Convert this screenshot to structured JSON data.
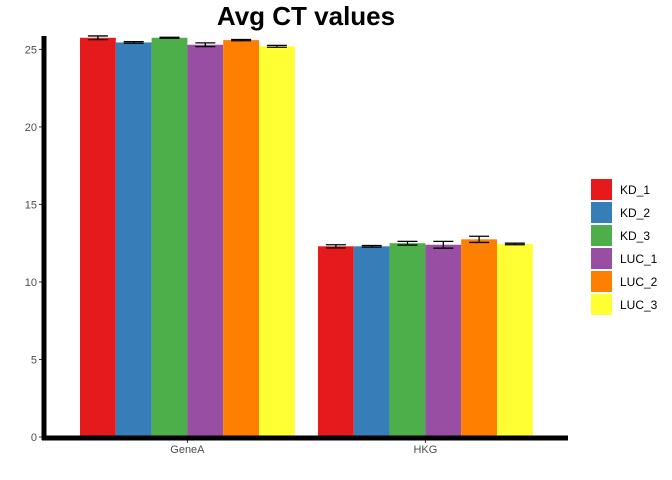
{
  "chart_data": {
    "type": "bar",
    "title": "Avg CT values",
    "xlabel": "",
    "ylabel": "",
    "categories": [
      "GeneA",
      "HKG"
    ],
    "ylim": [
      0,
      25.8
    ],
    "y_ticks": [
      0,
      5,
      10,
      15,
      20,
      25
    ],
    "grid": false,
    "legend_position": "right",
    "series": [
      {
        "name": "KD_1",
        "color": "#E41A1C",
        "values": [
          25.75,
          12.3
        ],
        "errors": [
          0.12,
          0.1
        ]
      },
      {
        "name": "KD_2",
        "color": "#377EB8",
        "values": [
          25.45,
          12.3
        ],
        "errors": [
          0.05,
          0.05
        ]
      },
      {
        "name": "KD_3",
        "color": "#4DAF4A",
        "values": [
          25.75,
          12.5
        ],
        "errors": [
          0.03,
          0.12
        ]
      },
      {
        "name": "LUC_1",
        "color": "#984EA3",
        "values": [
          25.3,
          12.4
        ],
        "errors": [
          0.12,
          0.22
        ]
      },
      {
        "name": "LUC_2",
        "color": "#FF7F00",
        "values": [
          25.6,
          12.75
        ],
        "errors": [
          0.04,
          0.2
        ]
      },
      {
        "name": "LUC_3",
        "color": "#FFFF33",
        "values": [
          25.2,
          12.45
        ],
        "errors": [
          0.06,
          0.05
        ]
      }
    ]
  }
}
